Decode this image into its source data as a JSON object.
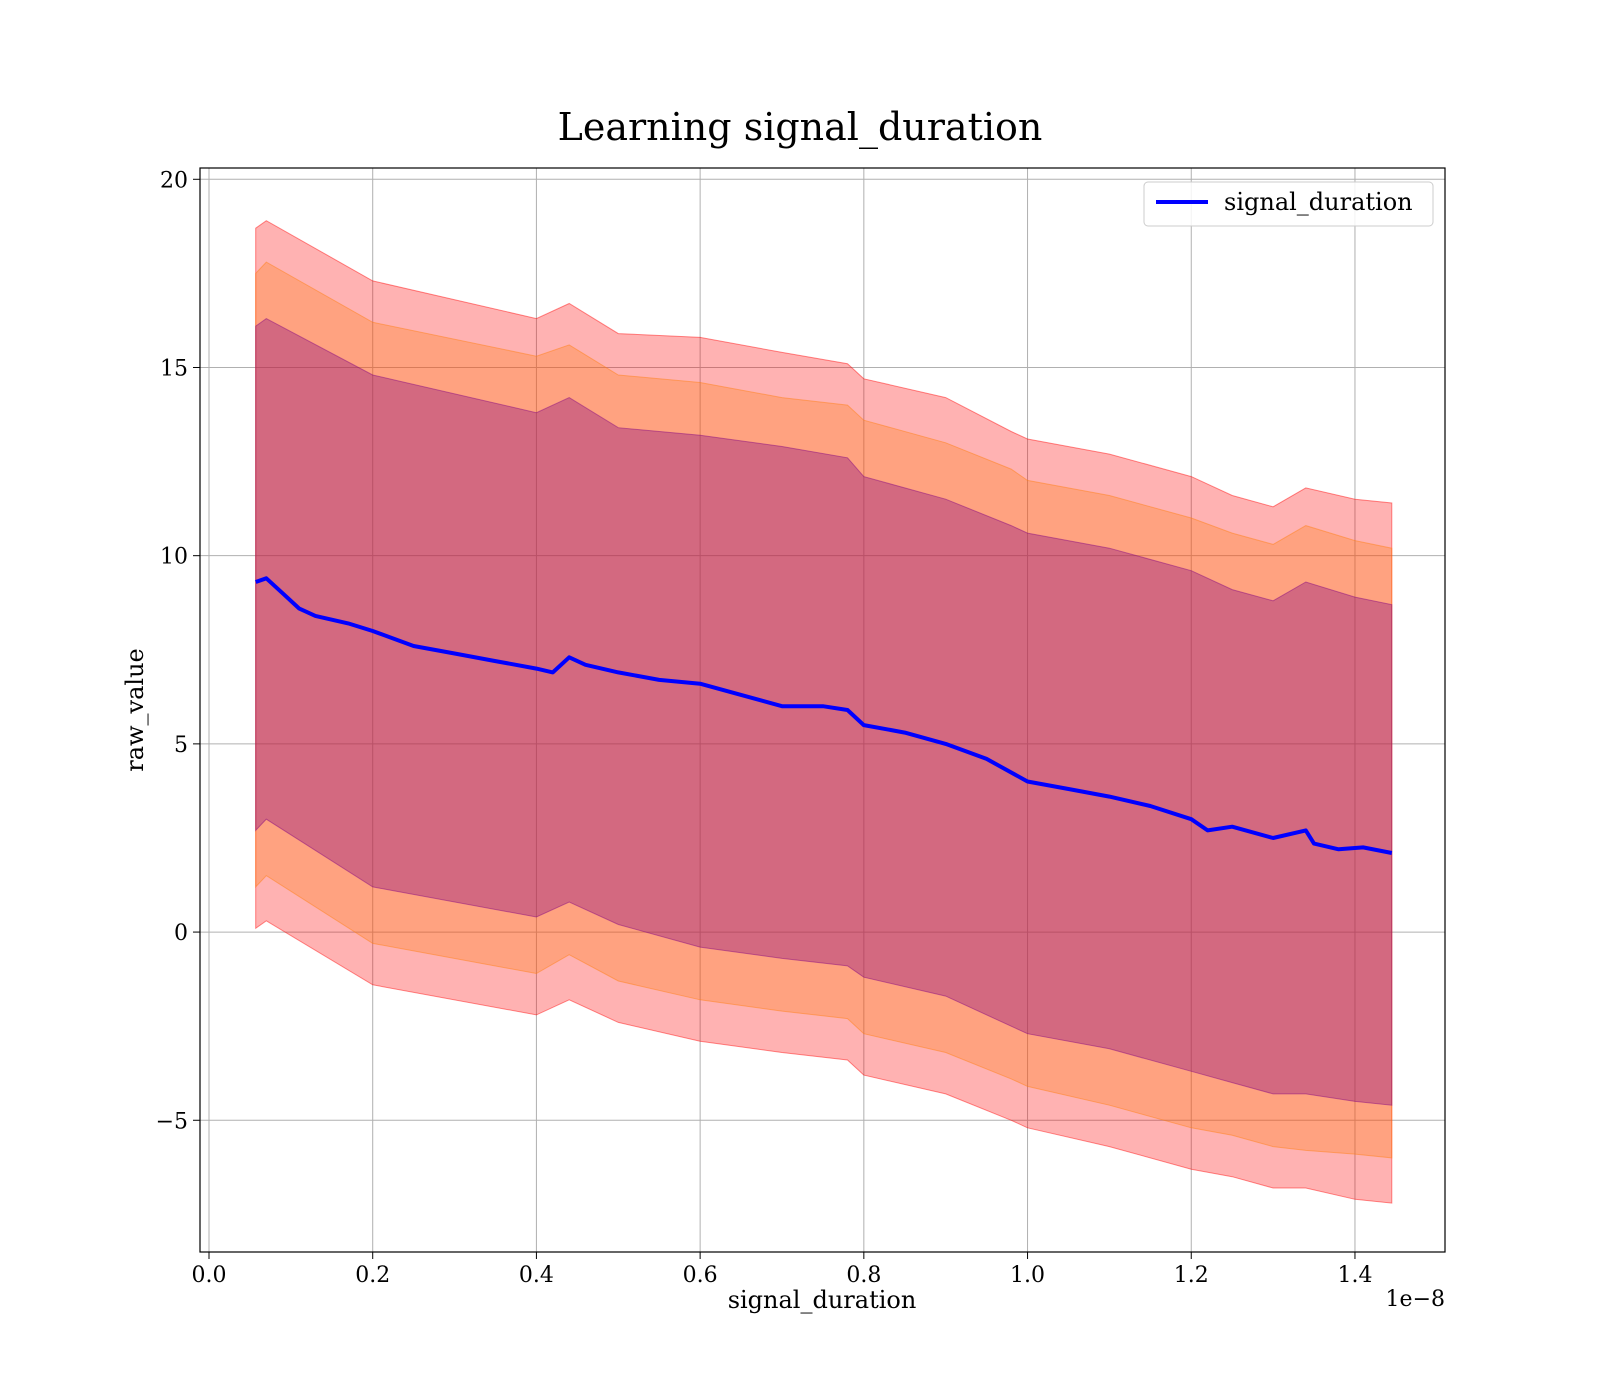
{
  "chart_data": {
    "type": "area",
    "title": "Learning signal_duration",
    "xlabel": "signal_duration",
    "ylabel": "raw_value",
    "x_offset_label": "1e−8",
    "xlim": [
      -0.011,
      1.51
    ],
    "ylim": [
      -8.5,
      20.3
    ],
    "x_ticks": [
      0.0,
      0.2,
      0.4,
      0.6,
      0.8,
      1.0,
      1.2,
      1.4
    ],
    "x_tick_labels": [
      "0.0",
      "0.2",
      "0.4",
      "0.6",
      "0.8",
      "1.0",
      "1.2",
      "1.4"
    ],
    "y_ticks": [
      -5,
      0,
      5,
      10,
      15,
      20
    ],
    "y_tick_labels": [
      "−5",
      "0",
      "5",
      "10",
      "15",
      "20"
    ],
    "grid": true,
    "legend_position": "top-right",
    "series": [
      {
        "name": "signal_duration",
        "color": "#0000ff",
        "x": [
          0.057,
          0.07,
          0.09,
          0.11,
          0.13,
          0.15,
          0.17,
          0.2,
          0.25,
          0.3,
          0.35,
          0.4,
          0.42,
          0.44,
          0.46,
          0.5,
          0.55,
          0.6,
          0.65,
          0.7,
          0.75,
          0.78,
          0.8,
          0.85,
          0.9,
          0.95,
          1.0,
          1.05,
          1.1,
          1.15,
          1.2,
          1.22,
          1.25,
          1.3,
          1.34,
          1.35,
          1.38,
          1.41,
          1.445
        ],
        "y": [
          9.3,
          9.4,
          9.0,
          8.6,
          8.4,
          8.3,
          8.2,
          8.0,
          7.6,
          7.4,
          7.2,
          7.0,
          6.9,
          7.3,
          7.1,
          6.9,
          6.7,
          6.6,
          6.3,
          6.0,
          6.0,
          5.9,
          5.5,
          5.3,
          5.0,
          4.6,
          4.0,
          3.8,
          3.6,
          3.35,
          3.0,
          2.7,
          2.8,
          2.5,
          2.7,
          2.35,
          2.2,
          2.25,
          2.1
        ]
      }
    ],
    "bands": [
      {
        "color": "#ff0000",
        "opacity": 0.3,
        "x": [
          0.057,
          0.07,
          0.2,
          0.4,
          0.44,
          0.5,
          0.6,
          0.7,
          0.78,
          0.8,
          0.9,
          0.98,
          1.0,
          1.1,
          1.2,
          1.25,
          1.3,
          1.34,
          1.4,
          1.445
        ],
        "upper": [
          18.7,
          18.9,
          17.3,
          16.3,
          16.7,
          15.9,
          15.8,
          15.4,
          15.1,
          14.7,
          14.2,
          13.3,
          13.1,
          12.7,
          12.1,
          11.6,
          11.3,
          11.8,
          11.5,
          11.4
        ],
        "lower": [
          0.1,
          0.3,
          -1.4,
          -2.2,
          -1.8,
          -2.4,
          -2.9,
          -3.2,
          -3.4,
          -3.8,
          -4.3,
          -5.0,
          -5.2,
          -5.7,
          -6.3,
          -6.5,
          -6.8,
          -6.8,
          -7.1,
          -7.2
        ]
      },
      {
        "color": "#ff7f0e",
        "opacity": 0.3,
        "x": [
          0.057,
          0.07,
          0.2,
          0.4,
          0.44,
          0.5,
          0.6,
          0.7,
          0.78,
          0.8,
          0.9,
          0.98,
          1.0,
          1.1,
          1.2,
          1.25,
          1.3,
          1.34,
          1.4,
          1.445
        ],
        "upper": [
          17.5,
          17.8,
          16.2,
          15.3,
          15.6,
          14.8,
          14.6,
          14.2,
          14.0,
          13.6,
          13.0,
          12.3,
          12.0,
          11.6,
          11.0,
          10.6,
          10.3,
          10.8,
          10.4,
          10.2
        ],
        "lower": [
          1.2,
          1.5,
          -0.3,
          -1.1,
          -0.6,
          -1.3,
          -1.8,
          -2.1,
          -2.3,
          -2.7,
          -3.2,
          -3.9,
          -4.1,
          -4.6,
          -5.2,
          -5.4,
          -5.7,
          -5.8,
          -5.9,
          -6.0
        ]
      },
      {
        "color": "#800080",
        "opacity": 0.35,
        "x": [
          0.057,
          0.07,
          0.2,
          0.4,
          0.44,
          0.5,
          0.6,
          0.7,
          0.78,
          0.8,
          0.9,
          0.98,
          1.0,
          1.1,
          1.2,
          1.25,
          1.3,
          1.34,
          1.4,
          1.445
        ],
        "upper": [
          16.1,
          16.3,
          14.8,
          13.8,
          14.2,
          13.4,
          13.2,
          12.9,
          12.6,
          12.1,
          11.5,
          10.8,
          10.6,
          10.2,
          9.6,
          9.1,
          8.8,
          9.3,
          8.9,
          8.7
        ],
        "lower": [
          2.7,
          3.0,
          1.2,
          0.4,
          0.8,
          0.2,
          -0.4,
          -0.7,
          -0.9,
          -1.2,
          -1.7,
          -2.5,
          -2.7,
          -3.1,
          -3.7,
          -4.0,
          -4.3,
          -4.3,
          -4.5,
          -4.6
        ]
      }
    ]
  }
}
